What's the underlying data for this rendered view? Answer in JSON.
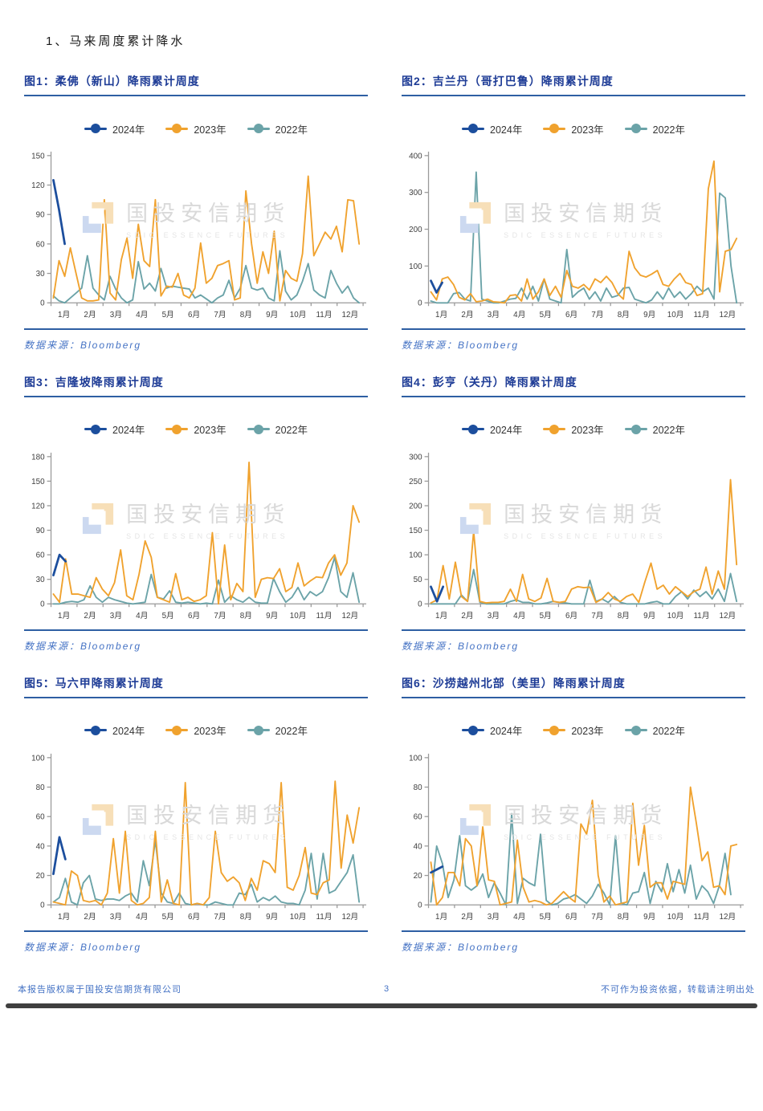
{
  "page": {
    "section_title": "1、马来周度累计降水",
    "watermark": {
      "logo": "sdic-cube-logo",
      "cn": "国投安信期货",
      "en": "SDIC ESSENCE FUTURES"
    },
    "footer": {
      "left": "本报告版权属于国投安信期货有限公司",
      "page_number": "3",
      "right": "不可作为投资依据，转载请注明出处"
    }
  },
  "source_label": "数据来源：Bloomberg",
  "legend": [
    {
      "label": "2024年",
      "color": "#1c4e9d"
    },
    {
      "label": "2023年",
      "color": "#f0a22e"
    },
    {
      "label": "2022年",
      "color": "#6ba3a8"
    }
  ],
  "x_labels": [
    "1月",
    "2月",
    "3月",
    "4月",
    "5月",
    "6月",
    "7月",
    "8月",
    "9月",
    "10月",
    "11月",
    "12月"
  ],
  "chart_data": [
    {
      "type": "line",
      "title": "图1：柔佛（新山）降雨累计周度",
      "xlabel": "",
      "ylabel": "",
      "ylim": [
        0,
        150
      ],
      "ystep": 30,
      "grid": false,
      "legend_position": "top",
      "series": [
        {
          "name": "2024年",
          "color": "#1c4e9d",
          "values": [
            125,
            95,
            60
          ]
        },
        {
          "name": "2023年",
          "color": "#f0a22e",
          "values": [
            5,
            43,
            27,
            56,
            30,
            5,
            2,
            2,
            3,
            105,
            10,
            3,
            44,
            66,
            25,
            80,
            43,
            37,
            105,
            7,
            17,
            16,
            30,
            8,
            5,
            15,
            61,
            20,
            25,
            38,
            40,
            43,
            3,
            5,
            114,
            60,
            20,
            52,
            30,
            73,
            2,
            33,
            25,
            22,
            50,
            129,
            48,
            60,
            72,
            65,
            78,
            52,
            105,
            104,
            60
          ]
        },
        {
          "name": "2022年",
          "color": "#6ba3a8",
          "values": [
            7,
            2,
            0,
            5,
            10,
            15,
            48,
            15,
            8,
            3,
            27,
            14,
            5,
            0,
            3,
            42,
            14,
            20,
            12,
            35,
            15,
            17,
            16,
            15,
            14,
            5,
            8,
            4,
            0,
            5,
            8,
            23,
            5,
            15,
            38,
            15,
            13,
            15,
            5,
            2,
            53,
            12,
            3,
            8,
            22,
            40,
            13,
            8,
            5,
            33,
            20,
            10,
            17,
            5,
            0
          ]
        }
      ]
    },
    {
      "type": "line",
      "title": "图2：吉兰丹（哥打巴鲁）降雨累计周度",
      "xlabel": "",
      "ylabel": "",
      "ylim": [
        0,
        400
      ],
      "ystep": 100,
      "grid": false,
      "legend_position": "top",
      "series": [
        {
          "name": "2024年",
          "color": "#1c4e9d",
          "values": [
            60,
            28,
            55
          ]
        },
        {
          "name": "2023年",
          "color": "#f0a22e",
          "values": [
            30,
            8,
            65,
            70,
            50,
            15,
            8,
            25,
            3,
            5,
            10,
            3,
            2,
            0,
            20,
            22,
            5,
            65,
            10,
            30,
            65,
            20,
            45,
            15,
            88,
            45,
            40,
            50,
            35,
            65,
            55,
            72,
            55,
            25,
            10,
            140,
            95,
            75,
            70,
            78,
            88,
            50,
            45,
            65,
            80,
            55,
            50,
            20,
            25,
            310,
            385,
            30,
            140,
            145,
            175
          ]
        },
        {
          "name": "2022年",
          "color": "#6ba3a8",
          "values": [
            5,
            0,
            0,
            0,
            25,
            28,
            10,
            5,
            355,
            10,
            5,
            0,
            0,
            5,
            10,
            12,
            40,
            10,
            45,
            5,
            65,
            10,
            5,
            0,
            145,
            15,
            30,
            40,
            10,
            30,
            5,
            40,
            15,
            20,
            40,
            42,
            10,
            5,
            0,
            8,
            30,
            10,
            40,
            15,
            30,
            10,
            25,
            45,
            30,
            40,
            10,
            298,
            285,
            100,
            0
          ]
        }
      ]
    },
    {
      "type": "line",
      "title": "图3：吉隆坡降雨累计周度",
      "xlabel": "",
      "ylabel": "",
      "ylim": [
        0,
        180
      ],
      "ystep": 30,
      "grid": false,
      "legend_position": "top",
      "series": [
        {
          "name": "2024年",
          "color": "#1c4e9d",
          "values": [
            35,
            60,
            52
          ]
        },
        {
          "name": "2023年",
          "color": "#f0a22e",
          "values": [
            12,
            2,
            55,
            12,
            12,
            10,
            8,
            32,
            18,
            10,
            26,
            66,
            10,
            5,
            36,
            77,
            57,
            8,
            5,
            2,
            37,
            5,
            8,
            3,
            5,
            10,
            87,
            0,
            72,
            5,
            25,
            15,
            173,
            8,
            30,
            32,
            31,
            43,
            15,
            20,
            50,
            22,
            28,
            33,
            32,
            50,
            60,
            35,
            50,
            120,
            100
          ]
        },
        {
          "name": "2022年",
          "color": "#6ba3a8",
          "values": [
            0,
            0,
            2,
            3,
            2,
            5,
            22,
            8,
            2,
            8,
            5,
            3,
            1,
            0,
            1,
            2,
            36,
            8,
            6,
            16,
            2,
            1,
            2,
            1,
            0,
            1,
            0,
            29,
            2,
            10,
            5,
            2,
            8,
            2,
            1,
            1,
            31,
            15,
            2,
            8,
            20,
            5,
            15,
            10,
            15,
            32,
            57,
            15,
            8,
            38,
            2
          ]
        }
      ]
    },
    {
      "type": "line",
      "title": "图4：彭亨（关丹）降雨累计周度",
      "xlabel": "",
      "ylabel": "",
      "ylim": [
        0,
        300
      ],
      "ystep": 50,
      "grid": false,
      "legend_position": "top",
      "series": [
        {
          "name": "2024年",
          "color": "#1c4e9d",
          "values": [
            35,
            5,
            35
          ]
        },
        {
          "name": "2023年",
          "color": "#f0a22e",
          "values": [
            2,
            8,
            78,
            10,
            85,
            15,
            5,
            148,
            5,
            2,
            3,
            3,
            5,
            30,
            5,
            60,
            10,
            5,
            12,
            52,
            5,
            3,
            5,
            30,
            35,
            33,
            34,
            3,
            10,
            23,
            10,
            5,
            15,
            20,
            3,
            45,
            83,
            30,
            38,
            20,
            35,
            25,
            15,
            25,
            30,
            75,
            20,
            67,
            30,
            253,
            80
          ]
        },
        {
          "name": "2022年",
          "color": "#6ba3a8",
          "values": [
            0,
            0,
            0,
            0,
            0,
            18,
            5,
            70,
            3,
            0,
            0,
            0,
            0,
            5,
            8,
            3,
            3,
            0,
            0,
            2,
            5,
            3,
            2,
            0,
            0,
            0,
            48,
            5,
            10,
            3,
            15,
            3,
            0,
            0,
            0,
            0,
            3,
            5,
            0,
            0,
            15,
            25,
            10,
            28,
            15,
            25,
            10,
            30,
            5,
            62,
            5
          ]
        }
      ]
    },
    {
      "type": "line",
      "title": "图5：马六甲降雨累计周度",
      "xlabel": "",
      "ylabel": "",
      "ylim": [
        0,
        100
      ],
      "ystep": 20,
      "grid": false,
      "legend_position": "top",
      "series": [
        {
          "name": "2024年",
          "color": "#1c4e9d",
          "values": [
            21,
            46,
            31
          ]
        },
        {
          "name": "2023年",
          "color": "#f0a22e",
          "values": [
            2,
            1,
            0,
            23,
            20,
            3,
            2,
            3,
            0,
            8,
            45,
            8,
            50,
            3,
            0,
            1,
            5,
            50,
            2,
            17,
            1,
            0,
            83,
            0,
            1,
            0,
            5,
            50,
            22,
            16,
            19,
            15,
            3,
            18,
            10,
            30,
            28,
            22,
            83,
            12,
            10,
            20,
            39,
            8,
            7,
            15,
            17,
            84,
            25,
            61,
            42,
            66
          ]
        },
        {
          "name": "2022年",
          "color": "#6ba3a8",
          "values": [
            2,
            5,
            18,
            2,
            0,
            15,
            20,
            4,
            3,
            4,
            4,
            3,
            6,
            8,
            2,
            30,
            13,
            44,
            8,
            2,
            1,
            8,
            1,
            0,
            1,
            0,
            0,
            2,
            1,
            0,
            0,
            8,
            7,
            14,
            2,
            5,
            3,
            6,
            2,
            1,
            1,
            0,
            10,
            35,
            4,
            35,
            8,
            10,
            16,
            22,
            34,
            2
          ]
        }
      ]
    },
    {
      "type": "line",
      "title": "图6：沙捞越州北部（美里）降雨累计周度",
      "xlabel": "",
      "ylabel": "",
      "ylim": [
        0,
        100
      ],
      "ystep": 20,
      "grid": false,
      "legend_position": "top",
      "series": [
        {
          "name": "2024年",
          "color": "#1c4e9d",
          "values": [
            22,
            24,
            26
          ]
        },
        {
          "name": "2023年",
          "color": "#f0a22e",
          "values": [
            29,
            0,
            5,
            22,
            22,
            13,
            45,
            40,
            13,
            53,
            17,
            16,
            0,
            1,
            2,
            44,
            12,
            2,
            3,
            2,
            0,
            1,
            5,
            9,
            5,
            2,
            55,
            48,
            71,
            20,
            2,
            6,
            0,
            1,
            2,
            69,
            27,
            54,
            12,
            15,
            15,
            4,
            16,
            15,
            14,
            80,
            56,
            30,
            36,
            12,
            13,
            7,
            40,
            41
          ]
        },
        {
          "name": "2022年",
          "color": "#6ba3a8",
          "values": [
            2,
            40,
            28,
            5,
            17,
            47,
            13,
            10,
            13,
            21,
            5,
            15,
            8,
            0,
            62,
            1,
            18,
            15,
            13,
            48,
            3,
            0,
            1,
            4,
            5,
            7,
            4,
            1,
            6,
            14,
            8,
            0,
            47,
            1,
            0,
            8,
            9,
            22,
            1,
            16,
            9,
            28,
            9,
            24,
            8,
            27,
            4,
            13,
            9,
            1,
            13,
            35,
            7
          ]
        }
      ]
    }
  ]
}
